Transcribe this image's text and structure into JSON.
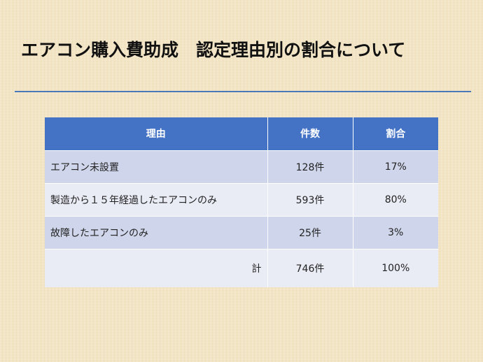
{
  "title": "エアコン購入費助成　認定理由別の割合について",
  "table": {
    "headers": [
      "理由",
      "件数",
      "割合"
    ],
    "rows": [
      {
        "reason": "エアコン未設置",
        "count": "128件",
        "ratio": "17%"
      },
      {
        "reason": "製造から１５年経過したエアコンのみ",
        "count": "593件",
        "ratio": "80%"
      },
      {
        "reason": "故障したエアコンのみ",
        "count": "25件",
        "ratio": "3%"
      }
    ],
    "total": {
      "label": "計",
      "count": "746件",
      "ratio": "100%"
    }
  },
  "colors": {
    "header_bg": "#4472c4",
    "row_dark": "#cfd5ea",
    "row_light": "#e9ebf5",
    "value_text": "#d9252a",
    "divider": "#4a78b8",
    "background": "#f5e6c4"
  }
}
